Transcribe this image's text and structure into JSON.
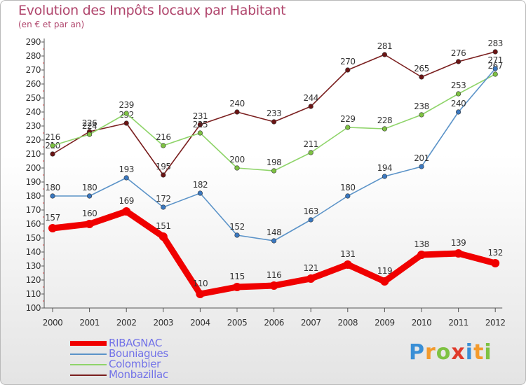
{
  "header": {
    "title": "Evolution des Impôts locaux par Habitant",
    "subtitle": "(en € et par an)"
  },
  "logo": {
    "letters": [
      "P",
      "r",
      "o",
      "x",
      "i",
      "t",
      "i"
    ],
    "colors": [
      "#3a8fd6",
      "#f39a2c",
      "#7ec242",
      "#e03b2c",
      "#3a8fd6",
      "#f39a2c",
      "#7ec242"
    ]
  },
  "chart_data": {
    "type": "line",
    "title": "Evolution des Impôts locaux par Habitant",
    "subtitle": "(en € et par an)",
    "xlabel": "",
    "ylabel": "",
    "ylim": [
      100,
      290
    ],
    "yticks": [
      100,
      110,
      120,
      130,
      140,
      150,
      160,
      170,
      180,
      190,
      200,
      210,
      220,
      230,
      240,
      250,
      260,
      270,
      280,
      290
    ],
    "grid": false,
    "legend_position": "bottom-left",
    "categories": [
      "2000",
      "2001",
      "2002",
      "2003",
      "2004",
      "2005",
      "2006",
      "2007",
      "2008",
      "2009",
      "2010",
      "2011",
      "2012"
    ],
    "series": [
      {
        "name": "Monbazillac",
        "color": "#7a1f1f",
        "marker": "#6b1414",
        "bold": false,
        "values": [
          210,
          226,
          232,
          195,
          231,
          240,
          233,
          244,
          270,
          281,
          265,
          276,
          283
        ]
      },
      {
        "name": "Colombier",
        "color": "#8fd46a",
        "marker": "#7ec242",
        "bold": false,
        "values": [
          216,
          224,
          239,
          216,
          225,
          200,
          198,
          211,
          229,
          228,
          238,
          253,
          267
        ]
      },
      {
        "name": "Bouniagues",
        "color": "#5b93c8",
        "marker": "#3a78c0",
        "bold": false,
        "values": [
          180,
          180,
          193,
          172,
          182,
          152,
          148,
          163,
          180,
          194,
          201,
          240,
          271
        ]
      },
      {
        "name": "RIBAGNAC",
        "color": "#f00000",
        "marker": "#f00000",
        "bold": true,
        "values": [
          157,
          160,
          169,
          151,
          110,
          115,
          116,
          121,
          131,
          119,
          138,
          139,
          132
        ]
      }
    ],
    "data_labels": {
      "Monbazillac": [
        "210",
        "226",
        "232",
        "195",
        "231",
        "240",
        "233",
        "244",
        "270",
        "281",
        "265",
        "276",
        "283"
      ],
      "Colombier": [
        "216",
        "224",
        "239",
        "216",
        "225",
        "200",
        "198",
        "211",
        "229",
        "228",
        "238",
        "253",
        "267"
      ],
      "Bouniagues": [
        "180",
        "180",
        "193",
        "172",
        "182",
        "152",
        "148",
        "163",
        "180",
        "194",
        "201",
        "240",
        "271"
      ],
      "RIBAGNAC": [
        "157",
        "160",
        "169",
        "151",
        "110",
        "115",
        "116",
        "121",
        "131",
        "119",
        "138",
        "139",
        "132"
      ]
    }
  },
  "legend": {
    "items": [
      {
        "label": "RIBAGNAC",
        "color": "#f00000",
        "bold": true
      },
      {
        "label": "Bouniagues",
        "color": "#5b93c8",
        "bold": false
      },
      {
        "label": "Colombier",
        "color": "#8fd46a",
        "bold": false
      },
      {
        "label": "Monbazillac",
        "color": "#7a1f1f",
        "bold": false
      }
    ]
  }
}
